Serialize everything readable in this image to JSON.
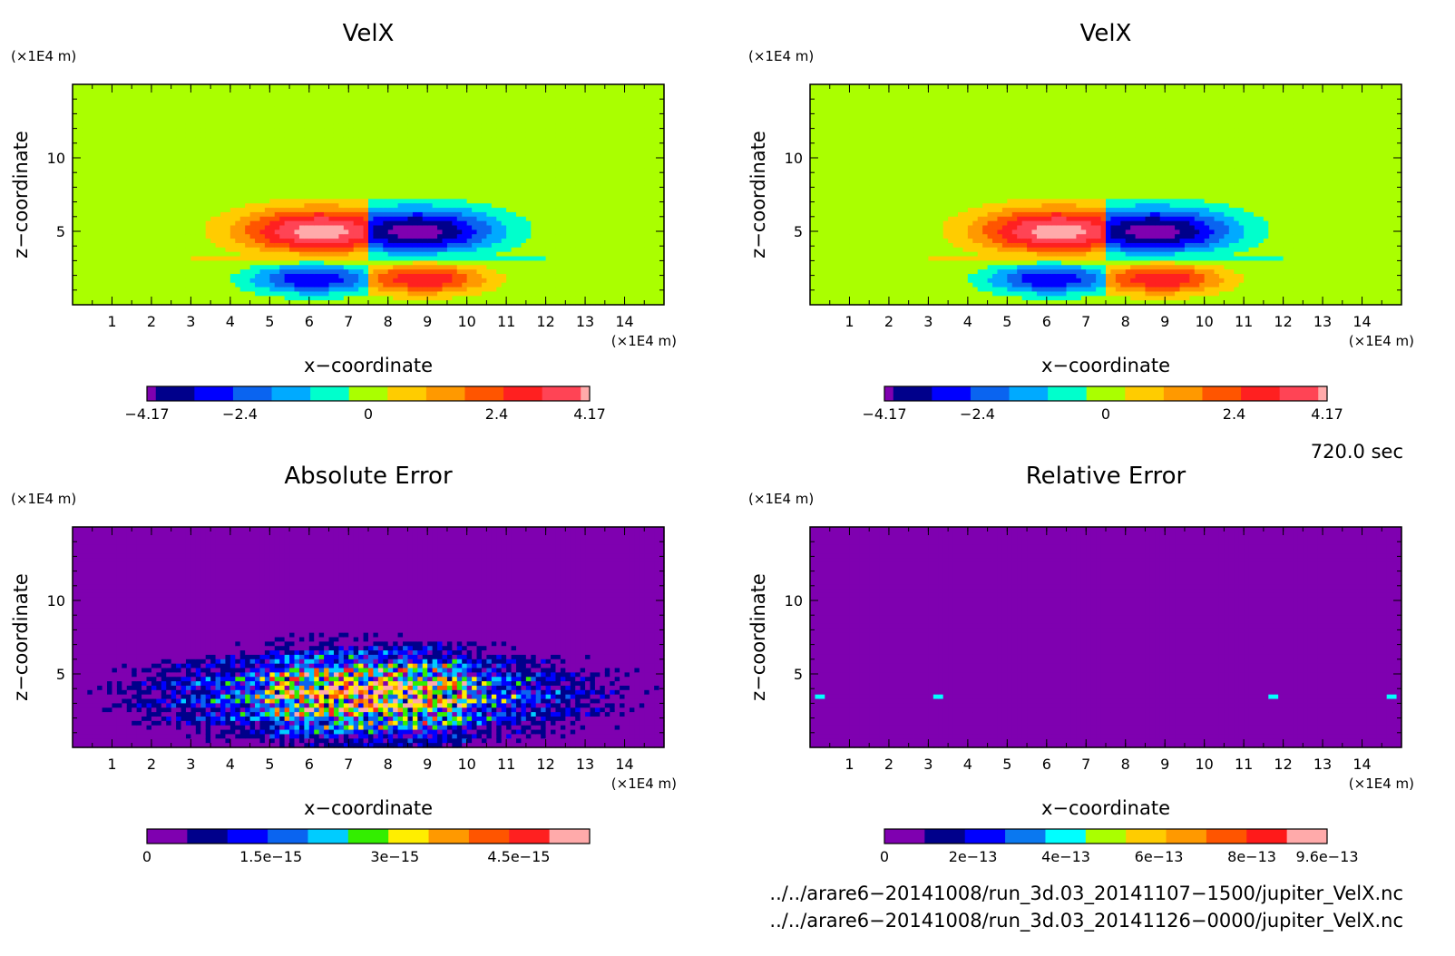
{
  "chart_data": [
    {
      "type": "heatmap",
      "title": "VelX",
      "xlabel": "x−coordinate",
      "ylabel": "z−coordinate",
      "x_unit": "(×1E4 m)",
      "y_unit": "(×1E4 m)",
      "xlim": [
        0,
        15
      ],
      "ylim": [
        0,
        15
      ],
      "x_ticks": [
        "1",
        "2",
        "3",
        "4",
        "5",
        "6",
        "7",
        "8",
        "9",
        "10",
        "11",
        "12",
        "13",
        "14"
      ],
      "y_ticks": [
        "5",
        "10"
      ],
      "field": "velx",
      "colorbar": {
        "colors": [
          "#7f00b0",
          "#00008b",
          "#0000ff",
          "#0a64f0",
          "#00aaff",
          "#00ffcc",
          "#aaff00",
          "#ffcc00",
          "#ff9900",
          "#ff5500",
          "#ff2020",
          "#ff4455",
          "#ffaaaa"
        ],
        "tick_labels": [
          "−4.17",
          "−2.4",
          "0",
          "2.4",
          "4.17"
        ],
        "range": [
          -4.17,
          4.17
        ]
      }
    },
    {
      "type": "heatmap",
      "title": "VelX",
      "xlabel": "x−coordinate",
      "ylabel": "z−coordinate",
      "x_unit": "(×1E4 m)",
      "y_unit": "(×1E4 m)",
      "xlim": [
        0,
        15
      ],
      "ylim": [
        0,
        15
      ],
      "x_ticks": [
        "1",
        "2",
        "3",
        "4",
        "5",
        "6",
        "7",
        "8",
        "9",
        "10",
        "11",
        "12",
        "13",
        "14"
      ],
      "y_ticks": [
        "5",
        "10"
      ],
      "field": "velx",
      "colorbar": {
        "colors": [
          "#7f00b0",
          "#00008b",
          "#0000ff",
          "#0a64f0",
          "#00aaff",
          "#00ffcc",
          "#aaff00",
          "#ffcc00",
          "#ff9900",
          "#ff5500",
          "#ff2020",
          "#ff4455",
          "#ffaaaa"
        ],
        "tick_labels": [
          "−4.17",
          "−2.4",
          "0",
          "2.4",
          "4.17"
        ],
        "range": [
          -4.17,
          4.17
        ]
      }
    },
    {
      "type": "heatmap",
      "title": "Absolute Error",
      "xlabel": "x−coordinate",
      "ylabel": "z−coordinate",
      "x_unit": "(×1E4 m)",
      "y_unit": "(×1E4 m)",
      "xlim": [
        0,
        15
      ],
      "ylim": [
        0,
        15
      ],
      "x_ticks": [
        "1",
        "2",
        "3",
        "4",
        "5",
        "6",
        "7",
        "8",
        "9",
        "10",
        "11",
        "12",
        "13",
        "14"
      ],
      "y_ticks": [
        "5",
        "10"
      ],
      "field": "abserr",
      "colorbar": {
        "colors": [
          "#7f00b0",
          "#00008b",
          "#0000ff",
          "#0a64f0",
          "#00ccff",
          "#33ee00",
          "#ffee00",
          "#ff9900",
          "#ff5500",
          "#ff2020",
          "#ffaaaa"
        ],
        "tick_labels": [
          "0",
          "1.5e−15",
          "3e−15",
          "4.5e−15"
        ],
        "range": [
          0,
          5.5e-15
        ]
      }
    },
    {
      "type": "heatmap",
      "title": "Relative Error",
      "xlabel": "x−coordinate",
      "ylabel": "z−coordinate",
      "x_unit": "(×1E4 m)",
      "y_unit": "(×1E4 m)",
      "xlim": [
        0,
        15
      ],
      "ylim": [
        0,
        15
      ],
      "x_ticks": [
        "1",
        "2",
        "3",
        "4",
        "5",
        "6",
        "7",
        "8",
        "9",
        "10",
        "11",
        "12",
        "13",
        "14"
      ],
      "y_ticks": [
        "5",
        "10"
      ],
      "field": "relerr",
      "colorbar": {
        "colors": [
          "#7f00b0",
          "#00008b",
          "#0000ff",
          "#0a78f0",
          "#00ffff",
          "#aaff00",
          "#ffcc00",
          "#ff9900",
          "#ff5500",
          "#ff1a1a",
          "#ffaaaa"
        ],
        "tick_labels": [
          "0",
          "2e−13",
          "4e−13",
          "6e−13",
          "8e−13",
          "9.6e−13"
        ],
        "range": [
          0,
          9.6e-13
        ]
      }
    }
  ],
  "time_label": "720.0 sec",
  "footer_files": [
    "../../arare6−20141008/run_3d.03_20141107−1500/jupiter_VelX.nc",
    "../../arare6−20141008/run_3d.03_20141126−0000/jupiter_VelX.nc"
  ]
}
